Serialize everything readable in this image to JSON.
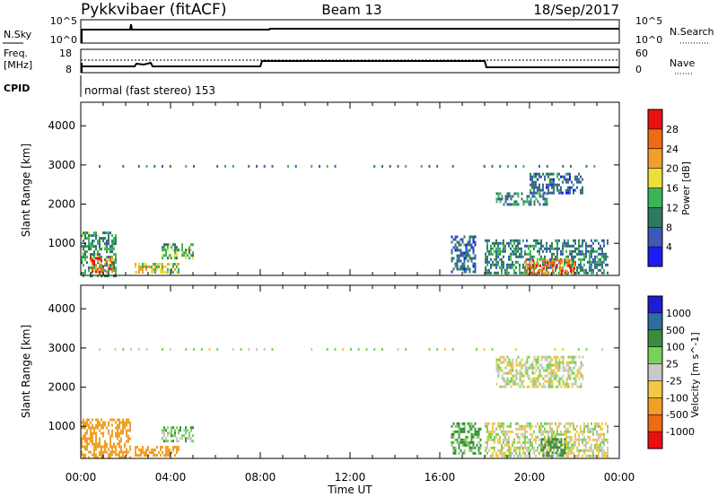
{
  "header": {
    "title": "Pykkvibaer (fitACF)",
    "beam": "Beam 13",
    "date": "18/Sep/2017"
  },
  "top_panels": {
    "nsky_label": "N.Sky",
    "nsky_ticks": [
      "10^5",
      "10^0"
    ],
    "nsearch_label": "N.Search",
    "nsearch_ticks": [
      "10^5",
      "10^0"
    ],
    "freq_label_1": "Freq.",
    "freq_label_2": "[MHz]",
    "freq_ticks": [
      "18",
      "8"
    ],
    "nave_label": "Nave",
    "nave_ticks": [
      "60",
      "0"
    ],
    "cpid_label": "CPID",
    "cpid_text": "normal (fast stereo) 153"
  },
  "colors": {
    "power_scale": [
      "#1c1cf0",
      "#3c5ab4",
      "#2e7a5c",
      "#3cb45a",
      "#eade3a",
      "#f0a02a",
      "#ee6a14",
      "#e81010"
    ],
    "velocity_scale": [
      "#e81010",
      "#ee6a14",
      "#f0a02a",
      "#f2c844",
      "#c8c8c8",
      "#7ad05a",
      "#3c8c3c",
      "#2c6ea0",
      "#1c1cd0"
    ],
    "ground_scatter": "#c8c8c8"
  },
  "chart_data": [
    {
      "type": "heatmap",
      "title": "",
      "xlabel": "",
      "ylabel": "Slant Range [km]",
      "xlim": [
        "00:00",
        "24:00"
      ],
      "ylim": [
        180,
        4600
      ],
      "y_ticks": [
        "1000",
        "2000",
        "3000",
        "4000"
      ],
      "colorbar_label": "Power [dB]",
      "colorbar_ticks": [
        "4",
        "8",
        "12",
        "16",
        "20",
        "24",
        "28"
      ],
      "colorbar_range": [
        0,
        32
      ],
      "regions": [
        {
          "t0": 0.0,
          "t1": 1.6,
          "r0": 200,
          "r1": 1300,
          "value": 12
        },
        {
          "t0": 0.4,
          "t1": 1.4,
          "r0": 250,
          "r1": 650,
          "value": 26
        },
        {
          "t0": 2.4,
          "t1": 4.4,
          "r0": 250,
          "r1": 500,
          "value": 18
        },
        {
          "t0": 3.6,
          "t1": 5.0,
          "r0": 600,
          "r1": 1000,
          "value": 14
        },
        {
          "t0": 16.5,
          "t1": 17.6,
          "r0": 300,
          "r1": 1200,
          "value": 8
        },
        {
          "t0": 18.5,
          "t1": 20.8,
          "r0": 2000,
          "r1": 2300,
          "value": 10
        },
        {
          "t0": 20.0,
          "t1": 22.4,
          "r0": 2300,
          "r1": 2800,
          "value": 8
        },
        {
          "t0": 18.0,
          "t1": 23.5,
          "r0": 250,
          "r1": 1100,
          "value": 10
        },
        {
          "t0": 19.8,
          "t1": 22.0,
          "r0": 250,
          "r1": 600,
          "value": 24
        }
      ]
    },
    {
      "type": "heatmap",
      "title": "",
      "xlabel": "Time UT",
      "ylabel": "Slant Range [km]",
      "xlim": [
        "00:00",
        "24:00"
      ],
      "ylim": [
        180,
        4600
      ],
      "x_ticks": [
        "00:00",
        "04:00",
        "08:00",
        "12:00",
        "16:00",
        "20:00",
        "00:00"
      ],
      "y_ticks": [
        "1000",
        "2000",
        "3000",
        "4000"
      ],
      "colorbar_label": "Velocity [m s^-1]",
      "colorbar_ticks": [
        "1000",
        "500",
        "100",
        "25",
        "-25",
        "-100",
        "-500",
        "-1000"
      ],
      "regions": [
        {
          "t0": 0.0,
          "t1": 2.2,
          "r0": 200,
          "r1": 1200,
          "value": -200
        },
        {
          "t0": 2.4,
          "t1": 4.4,
          "r0": 250,
          "r1": 500,
          "value": -200
        },
        {
          "t0": 3.6,
          "t1": 5.0,
          "r0": 600,
          "r1": 1000,
          "value": 60
        },
        {
          "t0": 16.5,
          "t1": 17.8,
          "r0": 300,
          "r1": 1100,
          "value": 120
        },
        {
          "t0": 18.5,
          "t1": 22.4,
          "r0": 2000,
          "r1": 2800,
          "value": 0
        },
        {
          "t0": 18.0,
          "t1": 23.5,
          "r0": 250,
          "r1": 1100,
          "value": 0
        },
        {
          "t0": 20.5,
          "t1": 21.6,
          "r0": 250,
          "r1": 700,
          "value": 200
        }
      ]
    }
  ]
}
